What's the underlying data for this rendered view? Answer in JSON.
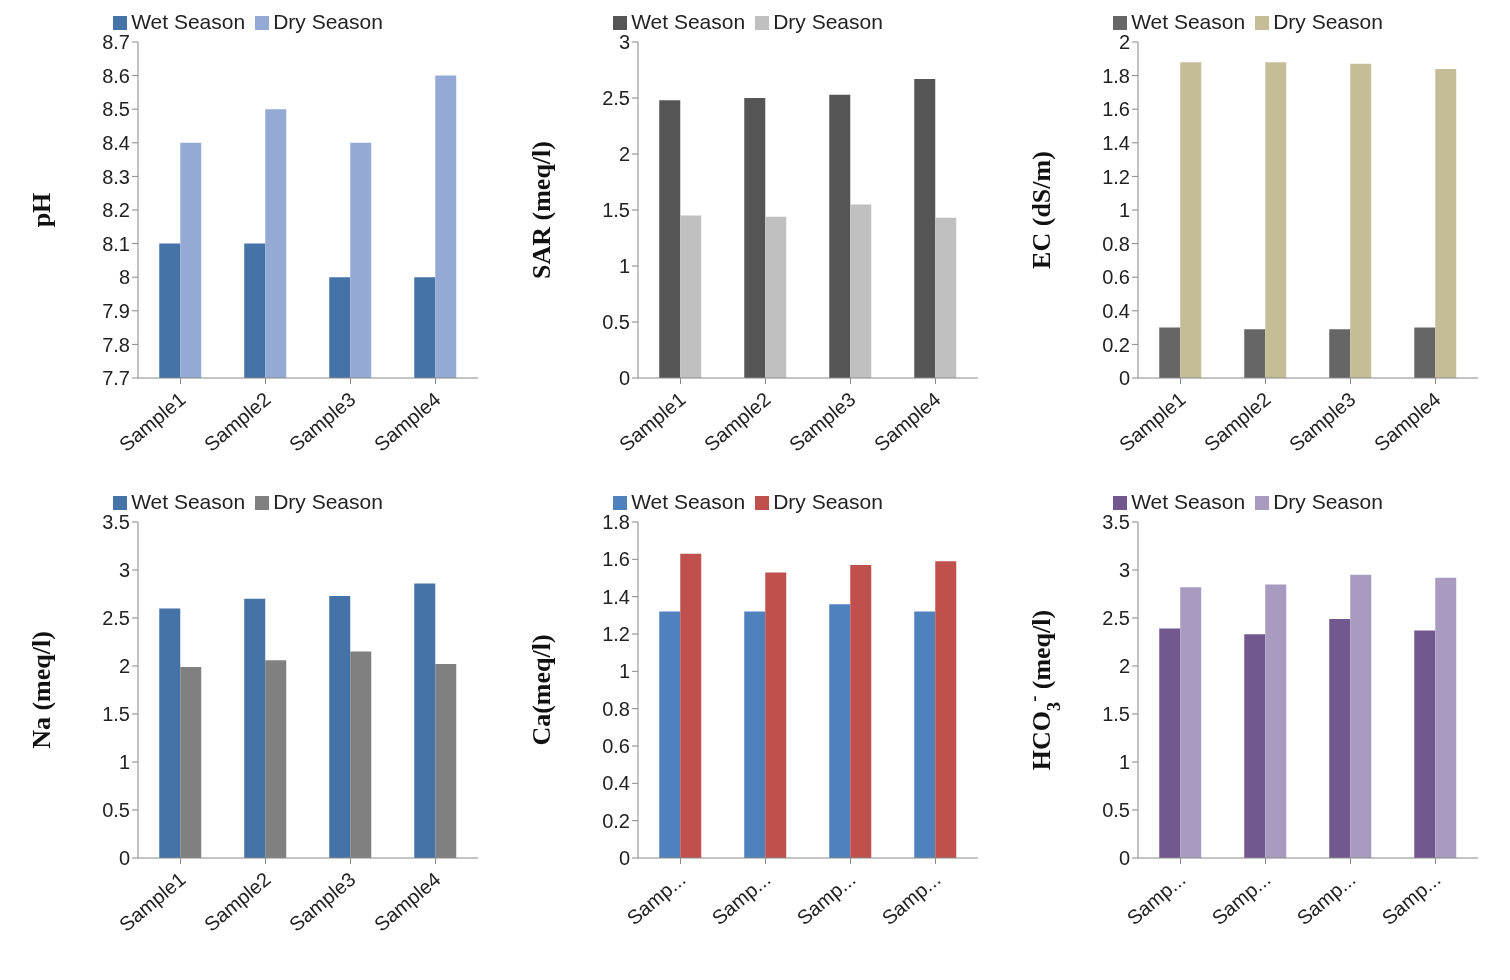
{
  "chart_data": [
    {
      "type": "bar",
      "ylabel": "pH",
      "categories": [
        "Sample1",
        "Sample2",
        "Sample3",
        "Sample4"
      ],
      "series": [
        {
          "name": "Wet Season",
          "color": "#4573a7",
          "values": [
            8.1,
            8.1,
            8.0,
            8.0
          ]
        },
        {
          "name": "Dry Season",
          "color": "#94aad4",
          "values": [
            8.4,
            8.5,
            8.4,
            8.6
          ]
        }
      ],
      "ylim": [
        7.7,
        8.7
      ],
      "yticks": [
        7.7,
        7.8,
        7.9,
        8,
        8.1,
        8.2,
        8.3,
        8.4,
        8.5,
        8.6,
        8.7
      ],
      "legend": "top",
      "grid": false
    },
    {
      "type": "bar",
      "ylabel": "SAR (meq/l)",
      "categories": [
        "Sample1",
        "Sample2",
        "Sample3",
        "Sample4"
      ],
      "series": [
        {
          "name": "Wet Season",
          "color": "#555555",
          "values": [
            2.48,
            2.5,
            2.53,
            2.67
          ]
        },
        {
          "name": "Dry Season",
          "color": "#c0c0c0",
          "values": [
            1.45,
            1.44,
            1.55,
            1.43
          ]
        }
      ],
      "ylim": [
        0,
        3
      ],
      "yticks": [
        0,
        0.5,
        1,
        1.5,
        2,
        2.5,
        3
      ],
      "legend": "top",
      "grid": false
    },
    {
      "type": "bar",
      "ylabel": "EC (dS/m)",
      "categories": [
        "Sample1",
        "Sample2",
        "Sample3",
        "Sample4"
      ],
      "series": [
        {
          "name": "Wet Season",
          "color": "#666666",
          "values": [
            0.3,
            0.29,
            0.29,
            0.3
          ]
        },
        {
          "name": "Dry Season",
          "color": "#c4bd97",
          "values": [
            1.88,
            1.88,
            1.87,
            1.84
          ]
        }
      ],
      "ylim": [
        0,
        2
      ],
      "yticks": [
        0,
        0.2,
        0.4,
        0.6,
        0.8,
        1,
        1.2,
        1.4,
        1.6,
        1.8,
        2
      ],
      "legend": "top",
      "grid": false
    },
    {
      "type": "bar",
      "ylabel": "Na (meq/l)",
      "categories": [
        "Sample1",
        "Sample2",
        "Sample3",
        "Sample4"
      ],
      "series": [
        {
          "name": "Wet Season",
          "color": "#4573a7",
          "values": [
            2.6,
            2.7,
            2.73,
            2.86
          ]
        },
        {
          "name": "Dry Season",
          "color": "#808080",
          "values": [
            1.99,
            2.06,
            2.15,
            2.02
          ]
        }
      ],
      "ylim": [
        0,
        3.5
      ],
      "yticks": [
        0,
        0.5,
        1,
        1.5,
        2,
        2.5,
        3,
        3.5
      ],
      "legend": "top",
      "grid": false
    },
    {
      "type": "bar",
      "ylabel": "Ca(meq/l)",
      "categories": [
        "Samp...",
        "Samp...",
        "Samp...",
        "Samp..."
      ],
      "series": [
        {
          "name": "Wet Season",
          "color": "#4f81bd",
          "values": [
            1.32,
            1.32,
            1.36,
            1.32
          ]
        },
        {
          "name": "Dry Season",
          "color": "#c0504d",
          "values": [
            1.63,
            1.53,
            1.57,
            1.59
          ]
        }
      ],
      "ylim": [
        0,
        1.8
      ],
      "yticks": [
        0,
        0.2,
        0.4,
        0.6,
        0.8,
        1,
        1.2,
        1.4,
        1.6,
        1.8
      ],
      "legend": "top",
      "grid": false
    },
    {
      "type": "bar",
      "ylabel": "HCO$_{3}$$^{-}$ (meq/l)",
      "categories": [
        "Samp...",
        "Samp...",
        "Samp...",
        "Samp..."
      ],
      "series": [
        {
          "name": "Wet Season",
          "color": "#71588f",
          "values": [
            2.39,
            2.33,
            2.49,
            2.37
          ]
        },
        {
          "name": "Dry Season",
          "color": "#a99bc0",
          "values": [
            2.82,
            2.85,
            2.95,
            2.92
          ]
        }
      ],
      "ylim": [
        0,
        3.5
      ],
      "yticks": [
        0,
        0.5,
        1,
        1.5,
        2,
        2.5,
        3,
        3.5
      ],
      "legend": "top",
      "grid": false
    }
  ]
}
